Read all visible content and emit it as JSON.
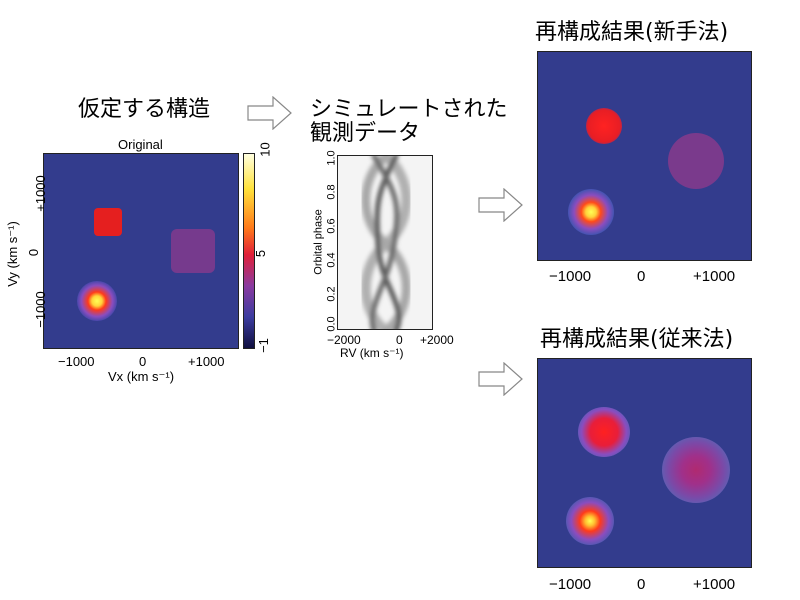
{
  "labels": {
    "assumed_structure": "仮定する構造",
    "simulated_line1": "シミュレートされた",
    "simulated_line2": "観測データ",
    "recon_new": "再構成結果(新手法)",
    "recon_old": "再構成結果(従来法)"
  },
  "original_plot": {
    "title": "Original",
    "xlabel": "Vx (km s⁻¹)",
    "ylabel": "Vy (km s⁻¹)",
    "x_ticks": [
      "−1000",
      "0",
      "+1000"
    ],
    "y_ticks": [
      "+1000",
      "0",
      "−1000"
    ],
    "colorbar_ticks": [
      "10",
      "5",
      "−1"
    ]
  },
  "trail_plot": {
    "xlabel": "RV (km s⁻¹)",
    "ylabel": "Orbital phase",
    "x_ticks": [
      "−2000",
      "0",
      "+2000"
    ],
    "y_ticks": [
      "1.0",
      "0.8",
      "0.6",
      "0.4",
      "0.2",
      "0.0"
    ]
  },
  "recon_new_plot": {
    "x_ticks": [
      "−1000",
      "0",
      "+1000"
    ]
  },
  "recon_old_plot": {
    "x_ticks": [
      "−1000",
      "0",
      "+1000"
    ]
  },
  "colors": {
    "background": "#333c8d",
    "bright_spot": "#ffff40",
    "red_spot": "#e61e1e",
    "purple_disk": "#7a3a8c"
  }
}
